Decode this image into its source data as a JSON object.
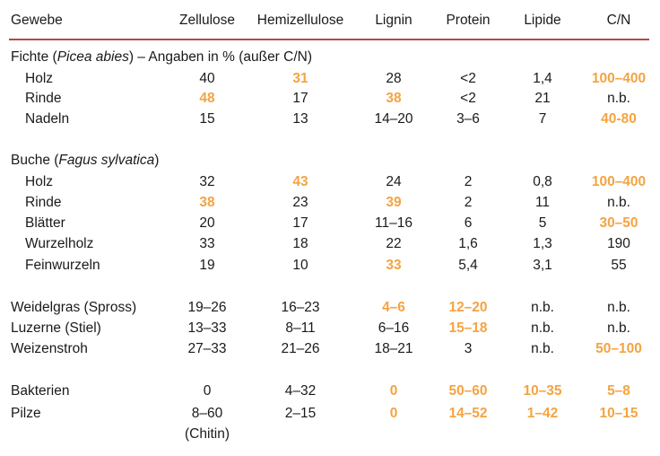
{
  "header": {
    "gewebe": "Gewebe",
    "zellulose": "Zellulose",
    "hemizellulose": "Hemizellulose",
    "lignin": "Lignin",
    "protein": "Protein",
    "lipide": "Lipide",
    "cn": "C/N"
  },
  "highlight_color": "#f5a341",
  "rule_color": "#b5474b",
  "sections": {
    "fichte": {
      "prefix": "Fichte (",
      "species": "Picea abies",
      "suffix": ") – Angaben in % (außer C/N)"
    },
    "buche": {
      "prefix": "Buche (",
      "species": "Fagus sylvatica",
      "suffix": ")"
    }
  },
  "rows": {
    "fichte_holz": {
      "name": "Holz",
      "zellulose": "40",
      "hemizellulose": "31",
      "lignin": "28",
      "protein": "<2",
      "lipide": "1,4",
      "cn": "100–400"
    },
    "fichte_rinde": {
      "name": "Rinde",
      "zellulose": "48",
      "hemizellulose": "17",
      "lignin": "38",
      "protein": "<2",
      "lipide": "21",
      "cn": "n.b."
    },
    "fichte_nadeln": {
      "name": "Nadeln",
      "zellulose": "15",
      "hemizellulose": "13",
      "lignin": "14–20",
      "protein": "3–6",
      "lipide": "7",
      "cn": "40-80"
    },
    "buche_holz": {
      "name": "Holz",
      "zellulose": "32",
      "hemizellulose": "43",
      "lignin": "24",
      "protein": "2",
      "lipide": "0,8",
      "cn": "100–400"
    },
    "buche_rinde": {
      "name": "Rinde",
      "zellulose": "38",
      "hemizellulose": "23",
      "lignin": "39",
      "protein": "2",
      "lipide": "11",
      "cn": "n.b."
    },
    "buche_blaetter": {
      "name": "Blätter",
      "zellulose": "20",
      "hemizellulose": "17",
      "lignin": "11–16",
      "protein": "6",
      "lipide": "5",
      "cn": "30–50"
    },
    "buche_wurzelholz": {
      "name": "Wurzelholz",
      "zellulose": "33",
      "hemizellulose": "18",
      "lignin": "22",
      "protein": "1,6",
      "lipide": "1,3",
      "cn": "190"
    },
    "buche_feinwurzeln": {
      "name": "Feinwurzeln",
      "zellulose": "19",
      "hemizellulose": "10",
      "lignin": "33",
      "protein": "5,4",
      "lipide": "3,1",
      "cn": "55"
    },
    "weidelgras": {
      "name": "Weidelgras (Spross)",
      "zellulose": "19–26",
      "hemizellulose": "16–23",
      "lignin": "4–6",
      "protein": "12–20",
      "lipide": "n.b.",
      "cn": "n.b."
    },
    "luzerne": {
      "name": "Luzerne (Stiel)",
      "zellulose": "13–33",
      "hemizellulose": "8–11",
      "lignin": "6–16",
      "protein": "15–18",
      "lipide": "n.b.",
      "cn": "n.b."
    },
    "weizenstroh": {
      "name": "Weizenstroh",
      "zellulose": "27–33",
      "hemizellulose": "21–26",
      "lignin": "18–21",
      "protein": "3",
      "lipide": "n.b.",
      "cn": "50–100"
    },
    "bakterien": {
      "name": "Bakterien",
      "zellulose": "0",
      "hemizellulose": "4–32",
      "lignin": "0",
      "protein": "50–60",
      "lipide": "10–35",
      "cn": "5–8"
    },
    "pilze": {
      "name": "Pilze",
      "zellulose": "8–60",
      "zellulose_note": "(Chitin)",
      "hemizellulose": "2–15",
      "lignin": "0",
      "protein": "14–52",
      "lipide": "1–42",
      "cn": "10–15"
    }
  }
}
